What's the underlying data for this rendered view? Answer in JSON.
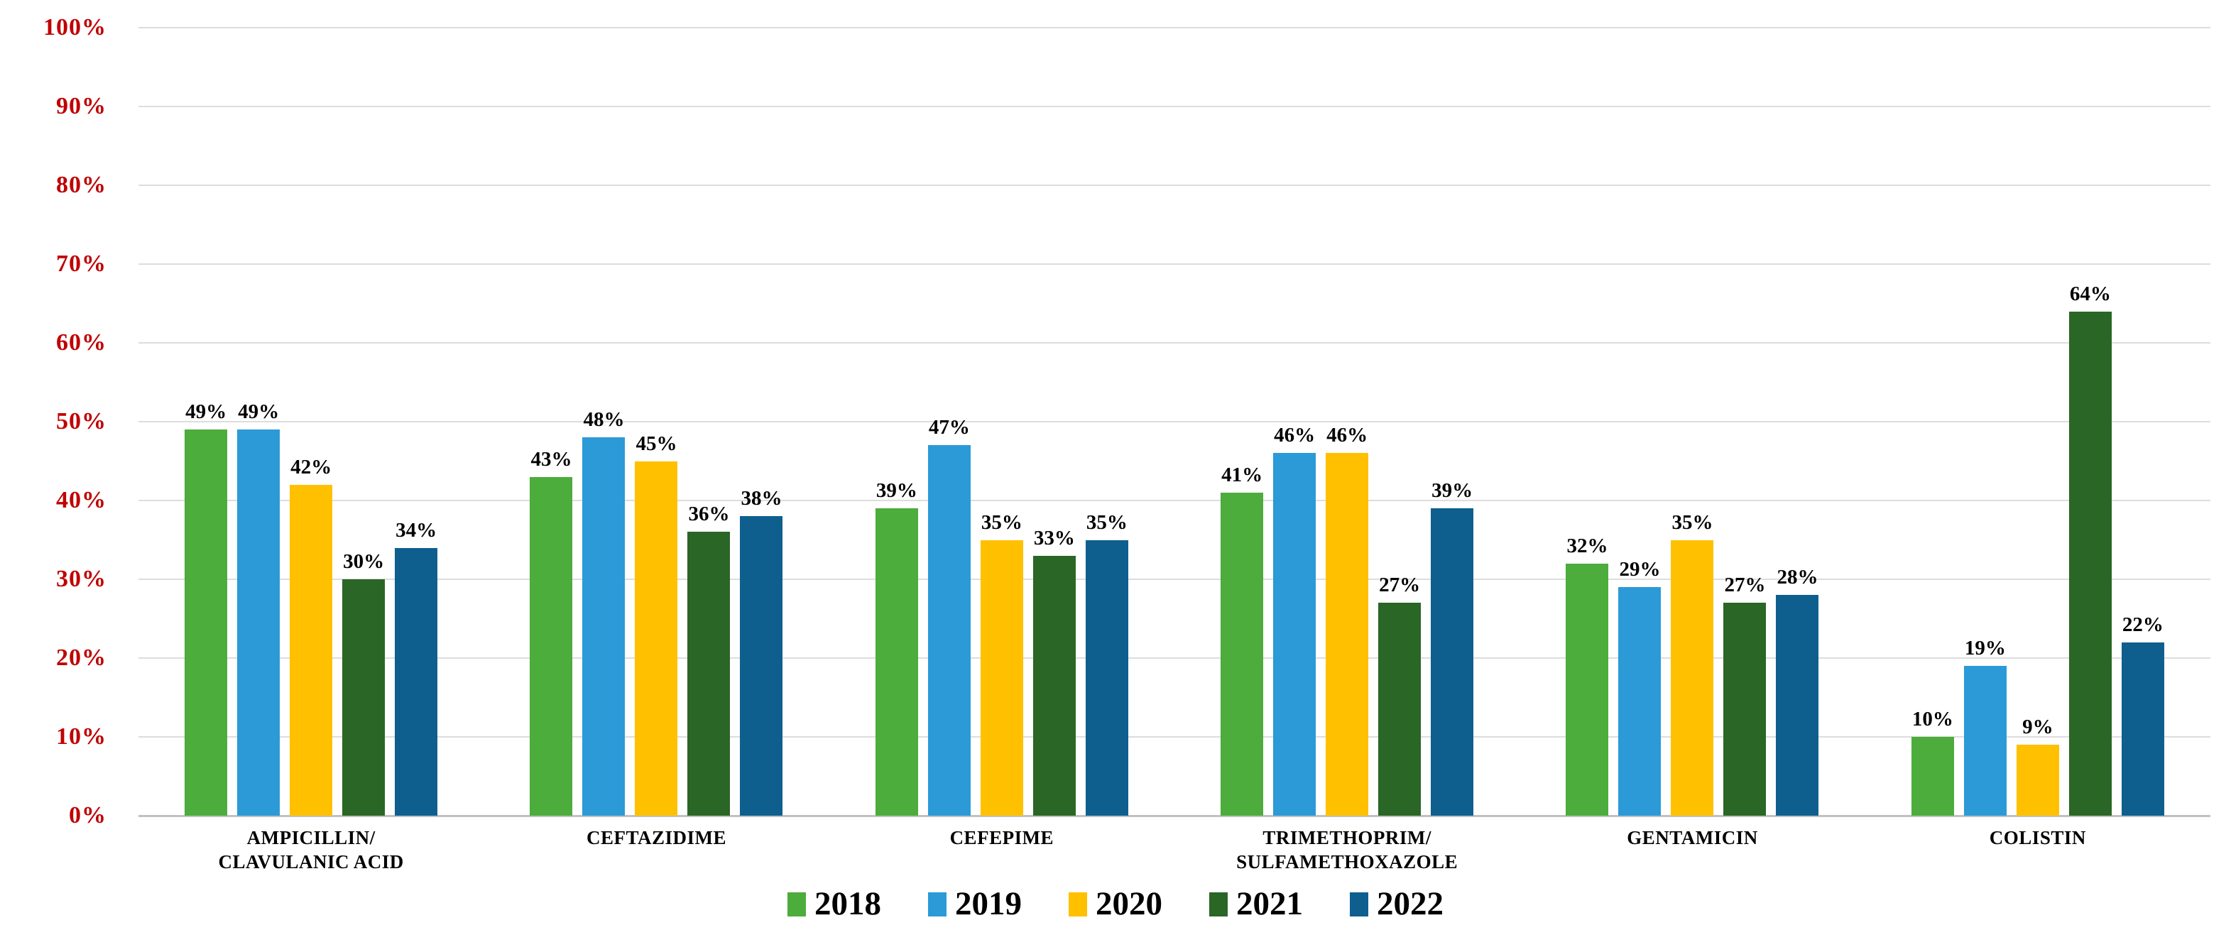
{
  "chart_data": {
    "type": "bar",
    "title": "",
    "xlabel": "",
    "ylabel": "",
    "ylim": [
      0,
      100
    ],
    "y_tick_step": 10,
    "y_tick_suffix": "%",
    "grid": true,
    "legend_position": "bottom-center",
    "axis_label_color": "#c00000",
    "data_label_color": "#000000",
    "categories": [
      "AMPICILLIN/ CLAVULANIC ACID",
      "CEFTAZIDIME",
      "CEFEPIME",
      "TRIMETHOPRIM/ SULFAMETHOXAZOLE",
      "GENTAMICIN",
      "COLISTIN"
    ],
    "category_lines": [
      [
        "AMPICILLIN/",
        "CLAVULANIC ACID"
      ],
      [
        "CEFTAZIDIME"
      ],
      [
        "CEFEPIME"
      ],
      [
        "TRIMETHOPRIM/",
        "SULFAMETHOXAZOLE"
      ],
      [
        "GENTAMICIN"
      ],
      [
        "COLISTIN"
      ]
    ],
    "series": [
      {
        "name": "2018",
        "color": "#4cac3c",
        "values": [
          49,
          43,
          39,
          41,
          32,
          10
        ]
      },
      {
        "name": "2019",
        "color": "#2b9ad7",
        "values": [
          49,
          48,
          47,
          46,
          29,
          19
        ]
      },
      {
        "name": "2020",
        "color": "#ffc000",
        "values": [
          42,
          45,
          35,
          46,
          35,
          9
        ]
      },
      {
        "name": "2021",
        "color": "#2a6625",
        "values": [
          30,
          36,
          33,
          27,
          27,
          64
        ]
      },
      {
        "name": "2022",
        "color": "#0e5f8e",
        "values": [
          34,
          38,
          35,
          39,
          28,
          22
        ]
      }
    ],
    "data_label_suffix": "%"
  }
}
